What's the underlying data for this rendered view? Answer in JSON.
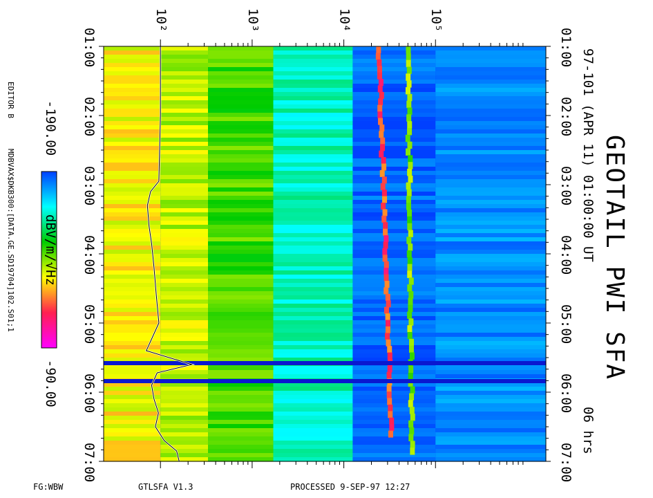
{
  "header": {
    "title": "GEOTAIL PWI SFA",
    "subtitle": "97-101 (APR 11) 01:00:00 UT",
    "duration": "06 hrs"
  },
  "left_margin": {
    "editor": "EDITOR B",
    "file_path": "MDBVAX$DKB300:[DATA.GE.SD19704]102.S01;1"
  },
  "colorbar": {
    "min_label": "-190.00",
    "max_label": "-90.00",
    "unit_label": "dBV/m/√Hz",
    "colors": [
      "#ff00ff",
      "#ff2050",
      "#ffff00",
      "#00cc00",
      "#00ffff",
      "#0040ff"
    ]
  },
  "footer": {
    "left": "FG:WBW",
    "program": "GTLSFA  V1.3",
    "processed": "PROCESSED  9-SEP-97  12:27"
  },
  "chart_data": {
    "type": "heatmap",
    "title": "GEOTAIL PWI SFA",
    "subtitle": "97-101 (APR 11) 01:00:00 UT",
    "time_axis": {
      "label": "UT",
      "range": [
        "01:00",
        "07:00"
      ],
      "tick_labels": [
        "01:00",
        "02:00",
        "03:00",
        "04:00",
        "05:00",
        "06:00",
        "07:00"
      ],
      "tick_hours": [
        1,
        2,
        3,
        4,
        5,
        6,
        7
      ]
    },
    "frequency_axis": {
      "scale": "log",
      "tick_labels": [
        "10²",
        "10³",
        "10⁴",
        "10⁵"
      ],
      "tick_values": [
        100,
        1000,
        10000,
        100000
      ],
      "range": [
        24,
        1600000
      ]
    },
    "colorbar": {
      "label": "dBV/m/√Hz",
      "range": [
        -190.0,
        -90.0
      ]
    },
    "bands": [
      {
        "f_low": 24,
        "f_high": 100,
        "typical_dB": -125
      },
      {
        "f_low": 100,
        "f_high": 330,
        "typical_dB": -130
      },
      {
        "f_low": 330,
        "f_high": 1700,
        "typical_dB": -140
      },
      {
        "f_low": 1700,
        "f_high": 12500,
        "typical_dB": -160
      },
      {
        "f_low": 12500,
        "f_high": 100000,
        "typical_dB": -185
      },
      {
        "f_low": 100000,
        "f_high": 1600000,
        "typical_dB": -180
      }
    ],
    "line_emissions": [
      {
        "name": "upper line",
        "start_hour": 1.0,
        "end_hour": 6.65,
        "freq_start": 24000,
        "freq_end": 33000,
        "dB": -110
      },
      {
        "name": "lower line",
        "start_hour": 1.0,
        "end_hour": 6.9,
        "freq_start": 50000,
        "freq_end": 55000,
        "dB": -135
      }
    ],
    "data_gaps_hours": [
      5.58,
      5.84
    ],
    "white_trace": {
      "hours": [
        1.0,
        2.0,
        2.95,
        3.1,
        3.3,
        3.6,
        3.85,
        4.2,
        4.6,
        5.0,
        5.4,
        5.6,
        5.72,
        5.9,
        6.1,
        6.3,
        6.5,
        6.7,
        6.85,
        7.0
      ],
      "freq": [
        100,
        100,
        96,
        78,
        72,
        75,
        80,
        85,
        90,
        96,
        70,
        220,
        92,
        80,
        85,
        95,
        88,
        110,
        150,
        160
      ]
    }
  }
}
